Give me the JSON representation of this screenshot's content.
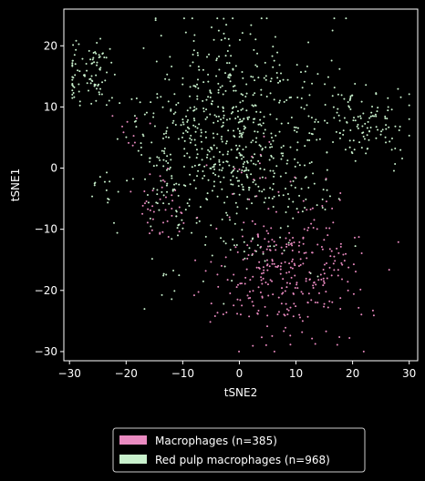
{
  "chart_data": {
    "type": "scatter",
    "xlabel": "tSNE2",
    "ylabel": "tSNE1",
    "xlim": [
      -31,
      31.5
    ],
    "ylim": [
      -31.5,
      26
    ],
    "xticks": [
      -30,
      -20,
      -10,
      0,
      10,
      20,
      30
    ],
    "yticks": [
      -30,
      -20,
      -10,
      0,
      10,
      20
    ],
    "xtick_labels": [
      "−30",
      "−20",
      "−10",
      "0",
      "10",
      "20",
      "30"
    ],
    "ytick_labels": [
      "−30",
      "−20",
      "−10",
      "0",
      "10",
      "20"
    ],
    "grid": false,
    "legend_position": "below the axes",
    "background": "#000000",
    "series": [
      {
        "name": "Macrophages (n=385)",
        "color": "#e98ac0",
        "count": 385,
        "clusters": [
          {
            "cx": 8,
            "cy": -17,
            "sx": 6.5,
            "sy": 5.5,
            "n": 300
          },
          {
            "cx": -14,
            "cy": -6,
            "sx": 2.2,
            "sy": 2.8,
            "n": 40
          },
          {
            "cx": 15,
            "cy": -9,
            "sx": 3,
            "sy": 3,
            "n": 20
          },
          {
            "cx": -19,
            "cy": 6,
            "sx": 1.5,
            "sy": 2,
            "n": 10
          },
          {
            "cx": 2,
            "cy": 1,
            "sx": 4,
            "sy": 3,
            "n": 15
          }
        ]
      },
      {
        "name": "Red pulp macrophages (n=968)",
        "color": "#c8f0cc",
        "count": 968,
        "clusters": [
          {
            "cx": -1,
            "cy": 4,
            "sx": 8,
            "sy": 9,
            "n": 690
          },
          {
            "cx": 22,
            "cy": 7,
            "sx": 4,
            "sy": 3,
            "n": 120
          },
          {
            "cx": -26,
            "cy": 15.5,
            "sx": 2,
            "sy": 3,
            "n": 90
          },
          {
            "cx": -14,
            "cy": 2,
            "sx": 2,
            "sy": 6,
            "n": 40
          },
          {
            "cx": -24,
            "cy": -2,
            "sx": 1.2,
            "sy": 3,
            "n": 15
          },
          {
            "cx": -12,
            "cy": -19,
            "sx": 1,
            "sy": 2,
            "n": 8
          },
          {
            "cx": -5,
            "cy": 22,
            "sx": 3,
            "sy": 1,
            "n": 5
          }
        ]
      }
    ]
  }
}
